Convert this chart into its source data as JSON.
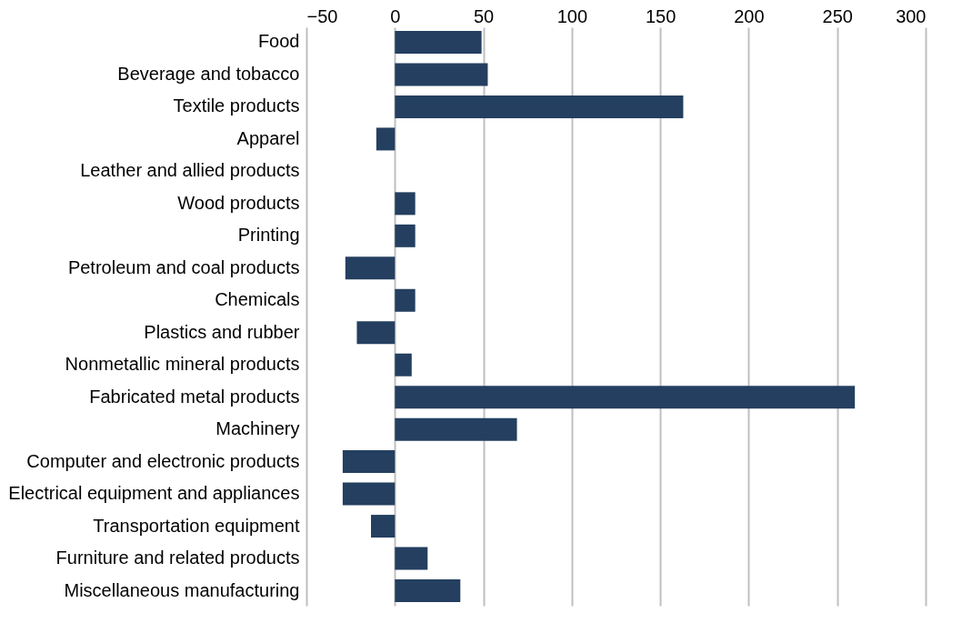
{
  "chart_data": {
    "type": "bar",
    "orientation": "horizontal",
    "categories": [
      "Food",
      "Beverage and tobacco",
      "Textile products",
      "Apparel",
      "Leather and allied products",
      "Wood products",
      "Printing",
      "Petroleum and coal products",
      "Chemicals",
      "Plastics and rubber",
      "Nonmetallic mineral products",
      "Fabricated metal products",
      "Machinery",
      "Computer and electronic products",
      "Electrical equipment and appliances",
      "Transportation equipment",
      "Furniture and related products",
      "Miscellaneous manufacturing"
    ],
    "values": [
      49,
      52.5,
      163,
      -10.5,
      0,
      11.5,
      11.5,
      -28,
      11.5,
      -21.5,
      9.5,
      260,
      69,
      -29.5,
      -29.5,
      -13.5,
      18.5,
      37
    ],
    "color": "#243f60",
    "xlim": [
      -50,
      300
    ],
    "xticks": [
      -50,
      0,
      50,
      100,
      150,
      200,
      250,
      300
    ],
    "grid": "x"
  }
}
